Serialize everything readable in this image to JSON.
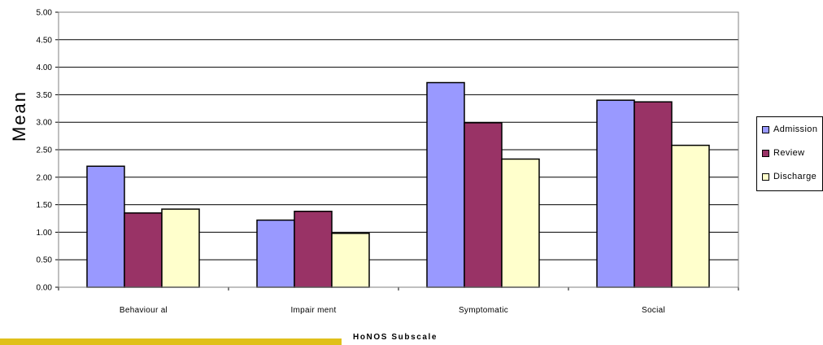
{
  "theme": {
    "accent_bar": "#E0C01A",
    "series_colors": [
      "#9999FF",
      "#993366",
      "#FFFFCC"
    ]
  },
  "chart_data": {
    "type": "bar",
    "categories": [
      "Behaviour al",
      "Impair ment",
      "Symptomatic",
      "Social"
    ],
    "series": [
      {
        "name": "Admission",
        "values": [
          2.2,
          1.22,
          3.72,
          3.4
        ]
      },
      {
        "name": "Review",
        "values": [
          1.35,
          1.38,
          2.99,
          3.37
        ]
      },
      {
        "name": "Discharge",
        "values": [
          1.42,
          0.98,
          2.33,
          2.58
        ]
      }
    ],
    "ylabel": "Mean",
    "xlabel": "HoNOS Subscale",
    "ylim": [
      0,
      5
    ],
    "yticks": [
      "0.00",
      "0.50",
      "1.00",
      "1.50",
      "2.00",
      "2.50",
      "3.00",
      "3.50",
      "4.00",
      "4.50",
      "5.00"
    ],
    "grid": true,
    "legend": "right"
  },
  "legend": {
    "items": [
      {
        "label": "Admission"
      },
      {
        "label": "Review"
      },
      {
        "label": "Discharge"
      }
    ]
  }
}
